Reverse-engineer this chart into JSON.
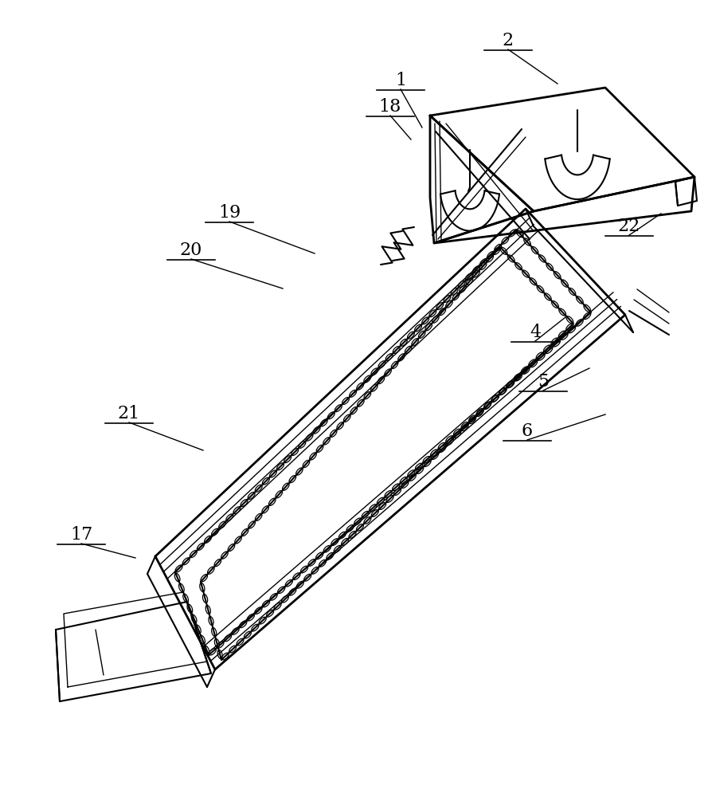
{
  "bg_color": "#ffffff",
  "line_color": "#000000",
  "lw": 1.5,
  "lw_thin": 1.0,
  "lw_thick": 2.0,
  "label_fontsize": 16,
  "figsize": [
    8.95,
    10.0
  ],
  "dpi": 100,
  "labels": {
    "1": [
      503,
      112,
      530,
      160
    ],
    "18": [
      490,
      145,
      516,
      175
    ],
    "2": [
      638,
      62,
      700,
      105
    ],
    "22": [
      790,
      295,
      830,
      268
    ],
    "19": [
      288,
      278,
      395,
      318
    ],
    "20": [
      240,
      325,
      355,
      362
    ],
    "4": [
      672,
      428,
      710,
      398
    ],
    "5": [
      682,
      490,
      740,
      462
    ],
    "6": [
      662,
      552,
      760,
      520
    ],
    "21": [
      162,
      530,
      255,
      565
    ],
    "17": [
      102,
      682,
      170,
      700
    ]
  }
}
